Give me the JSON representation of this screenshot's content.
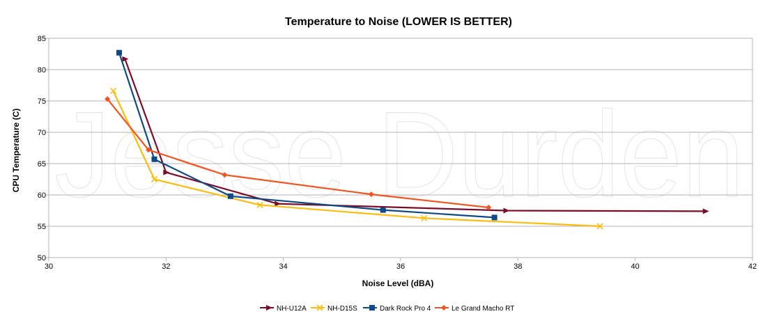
{
  "chart_data": {
    "type": "line",
    "title": "Temperature to Noise (LOWER IS BETTER)",
    "xlabel": "Noise Level (dBA)",
    "ylabel": "CPU Temperature (C)",
    "xlim": [
      30,
      42
    ],
    "ylim": [
      50,
      85
    ],
    "xticks": [
      30,
      32,
      34,
      36,
      38,
      40,
      42
    ],
    "yticks": [
      50,
      55,
      60,
      65,
      70,
      75,
      80,
      85
    ],
    "grid": "horizontal",
    "legend": "bottom",
    "watermark": "Jesse Durden",
    "series": [
      {
        "name": "NH-U12A",
        "color": "#7b0c28",
        "marker": "arrow",
        "points": [
          [
            31.3,
            81.7
          ],
          [
            32.0,
            63.6
          ],
          [
            33.9,
            58.6
          ],
          [
            37.8,
            57.5
          ],
          [
            41.2,
            57.4
          ]
        ]
      },
      {
        "name": "NH-D15S",
        "color": "#fdbc0d",
        "marker": "x",
        "points": [
          [
            31.1,
            76.6
          ],
          [
            31.8,
            62.5
          ],
          [
            33.6,
            58.4
          ],
          [
            36.4,
            56.3
          ],
          [
            39.4,
            55.0
          ]
        ]
      },
      {
        "name": "Dark Rock Pro 4",
        "color": "#0e4a86",
        "marker": "square",
        "points": [
          [
            31.2,
            82.7
          ],
          [
            31.8,
            65.7
          ],
          [
            33.1,
            59.8
          ],
          [
            35.7,
            57.6
          ],
          [
            37.6,
            56.4
          ]
        ]
      },
      {
        "name": "Le Grand Macho RT",
        "color": "#f4531d",
        "marker": "diamond",
        "points": [
          [
            31.0,
            75.3
          ],
          [
            31.7,
            67.2
          ],
          [
            33.0,
            63.2
          ],
          [
            35.5,
            60.1
          ],
          [
            37.5,
            58.0
          ]
        ]
      }
    ]
  }
}
